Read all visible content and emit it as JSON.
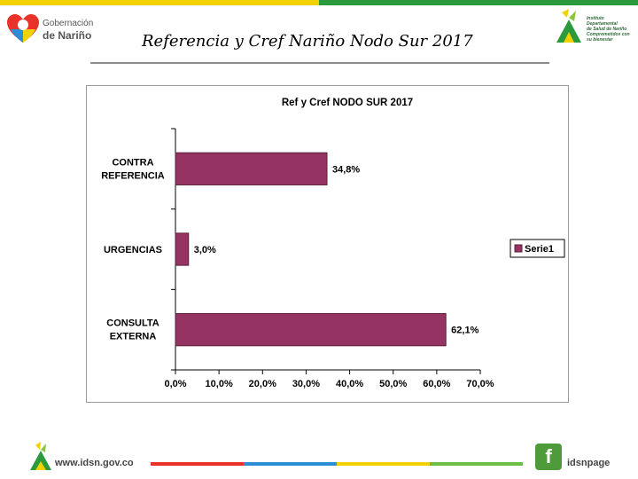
{
  "header": {
    "title": "Referencia y Cref Nariño Nodo Sur 2017",
    "logo_left_line1": "Gobernación",
    "logo_left_line2": "de Nariño",
    "logo_right_lines": [
      "Instituto",
      "Departamental",
      "de Salud de Nariño",
      "Comprometidos con su bienestar"
    ]
  },
  "colors": {
    "bar": "#953463",
    "bar_stroke": "#5a1f3c",
    "green": "#2a9a3c",
    "yellow": "#f2d100",
    "red": "#e8322a",
    "blue": "#2a8fd6"
  },
  "chart_data": {
    "type": "bar",
    "orientation": "horizontal",
    "title": "Ref y Cref NODO SUR 2017",
    "categories": [
      "CONTRA REFERENCIA",
      "URGENCIAS",
      "CONSULTA EXTERNA"
    ],
    "series": [
      {
        "name": "Serie1",
        "values": [
          34.8,
          3.0,
          62.1
        ]
      }
    ],
    "data_labels": [
      "34,8%",
      "3,0%",
      "62,1%"
    ],
    "x_ticks": [
      "0,0%",
      "10,0%",
      "20,0%",
      "30,0%",
      "40,0%",
      "50,0%",
      "60,0%",
      "70,0%"
    ],
    "xlim": [
      0,
      70
    ],
    "xlabel": "",
    "ylabel": "",
    "grid": false,
    "legend_position": "right"
  },
  "footer": {
    "url": "www.idsn.gov.co",
    "social": "idsnpage",
    "social_icon": "facebook-icon"
  }
}
